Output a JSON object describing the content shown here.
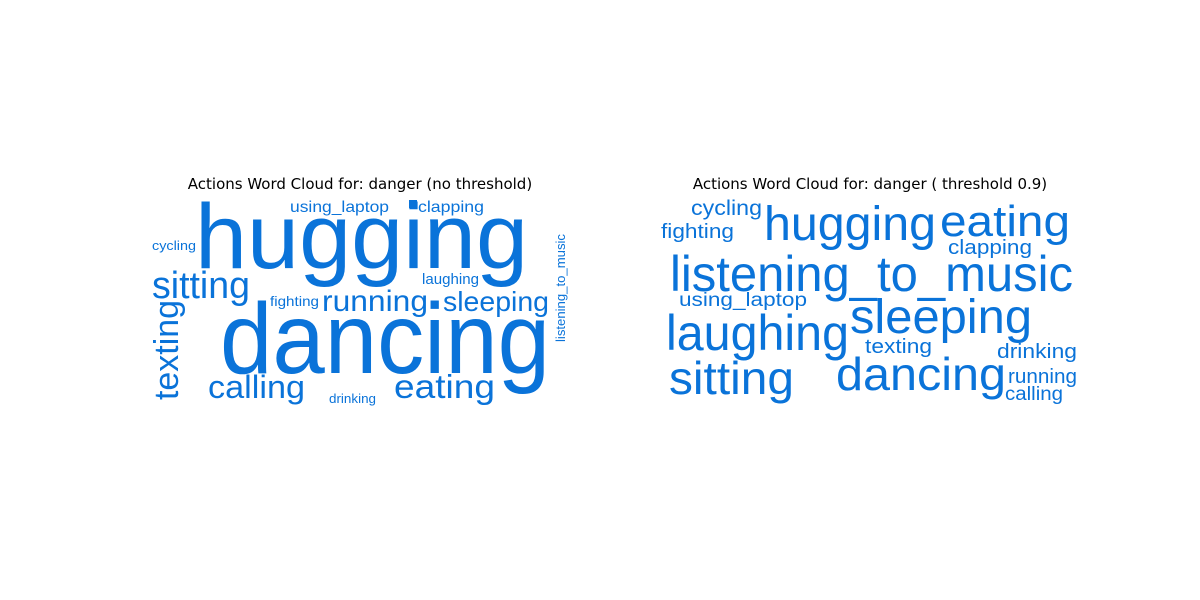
{
  "chart_data": [
    {
      "type": "wordcloud",
      "title": "Actions Word Cloud for: danger (no threshold)",
      "color": "#0a73d9",
      "words": [
        {
          "text": "hugging",
          "weight": 1.0
        },
        {
          "text": "dancing",
          "weight": 1.0
        },
        {
          "text": "sitting",
          "weight": 0.45
        },
        {
          "text": "running",
          "weight": 0.4
        },
        {
          "text": "sleeping",
          "weight": 0.38
        },
        {
          "text": "texting",
          "weight": 0.38
        },
        {
          "text": "calling",
          "weight": 0.4
        },
        {
          "text": "eating",
          "weight": 0.42
        },
        {
          "text": "using_laptop",
          "weight": 0.22
        },
        {
          "text": "clapping",
          "weight": 0.22
        },
        {
          "text": "laughing",
          "weight": 0.2
        },
        {
          "text": "fighting",
          "weight": 0.18
        },
        {
          "text": "cycling",
          "weight": 0.17
        },
        {
          "text": "drinking",
          "weight": 0.17
        },
        {
          "text": "listening_to_music",
          "weight": 0.17
        },
        {
          "text": "",
          "weight": 0.1
        }
      ]
    },
    {
      "type": "wordcloud",
      "title": "Actions Word Cloud for: danger ( threshold 0.9)",
      "color": "#0a73d9",
      "words": [
        {
          "text": "hugging",
          "weight": 0.65
        },
        {
          "text": "eating",
          "weight": 0.62
        },
        {
          "text": "listening_to_music",
          "weight": 0.7
        },
        {
          "text": "sleeping",
          "weight": 0.68
        },
        {
          "text": "laughing",
          "weight": 0.7
        },
        {
          "text": "dancing",
          "weight": 0.68
        },
        {
          "text": "sitting",
          "weight": 0.65
        },
        {
          "text": "cycling",
          "weight": 0.3
        },
        {
          "text": "fighting",
          "weight": 0.3
        },
        {
          "text": "clapping",
          "weight": 0.3
        },
        {
          "text": "using_laptop",
          "weight": 0.3
        },
        {
          "text": "texting",
          "weight": 0.3
        },
        {
          "text": "drinking",
          "weight": 0.3
        },
        {
          "text": "running",
          "weight": 0.3
        },
        {
          "text": "calling",
          "weight": 0.3
        }
      ]
    }
  ]
}
